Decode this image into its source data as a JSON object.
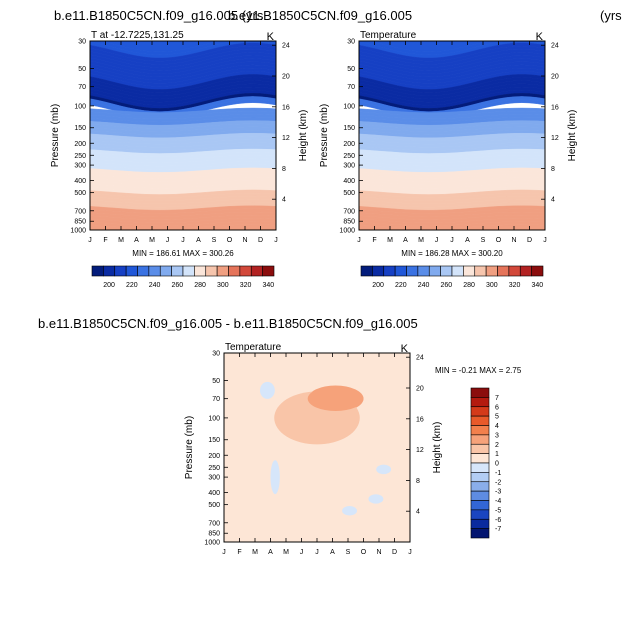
{
  "header": {
    "case_a": "b.e11.B1850C5CN.f09_g16.005 (yrs",
    "case_b": "b.e11.B1850C5CN.f09_g16.005",
    "yrs_b": "(yrs"
  },
  "diff_title": "b.e11.B1850C5CN.f09_g16.005 - b.e11.B1850C5CN.f09_g16.005",
  "chart_data": [
    {
      "type": "heatmap",
      "id": "panel1",
      "title_left": "T at -12.7225,131.25",
      "title_right": "K",
      "ylabel": "Pressure (mb)",
      "ylabel_right": "Height (km)",
      "x_ticks": [
        "J",
        "F",
        "M",
        "A",
        "M",
        "J",
        "J",
        "A",
        "S",
        "O",
        "N",
        "D",
        "J"
      ],
      "p_ticks": [
        30,
        50,
        70,
        100,
        150,
        200,
        250,
        300,
        400,
        500,
        700,
        850,
        1000
      ],
      "h_ticks": [
        4,
        8,
        12,
        16,
        20,
        24
      ],
      "contour_levels": [
        195,
        200,
        205,
        210,
        215,
        220,
        225,
        230,
        235,
        240,
        245,
        250,
        255,
        260,
        265,
        270,
        275,
        280,
        285,
        290,
        295,
        300
      ],
      "stats": "MIN = 186.61 MAX = 300.26",
      "colorbar_labels": [
        "200",
        "220",
        "240",
        "260",
        "280",
        "300",
        "320",
        "340"
      ],
      "colorbar_colors": [
        "#031c7b",
        "#0a2ba3",
        "#1640c4",
        "#2057d8",
        "#3a72e2",
        "#5a8de8",
        "#80aaee",
        "#a9c7f4",
        "#d3e4fa",
        "#fbe6da",
        "#f6c5ad",
        "#f09f81",
        "#e5745a",
        "#d2483a",
        "#b22222",
        "#8b0d0d"
      ]
    },
    {
      "type": "heatmap",
      "id": "panel2",
      "title_left": "Temperature",
      "title_right": "K",
      "ylabel": "Pressure (mb)",
      "ylabel_right": "Height (km)",
      "x_ticks": [
        "J",
        "F",
        "M",
        "A",
        "M",
        "J",
        "J",
        "A",
        "S",
        "O",
        "N",
        "D",
        "J"
      ],
      "p_ticks": [
        30,
        50,
        70,
        100,
        150,
        200,
        250,
        300,
        400,
        500,
        700,
        850,
        1000
      ],
      "h_ticks": [
        4,
        8,
        12,
        16,
        20,
        24
      ],
      "contour_levels": [
        195,
        200,
        205,
        210,
        215,
        220,
        225,
        230,
        235,
        240,
        245,
        250,
        255,
        260,
        265,
        270,
        275,
        280,
        285,
        290,
        295,
        300
      ],
      "stats": "MIN = 186.28 MAX = 300.20",
      "colorbar_labels": [
        "200",
        "220",
        "240",
        "260",
        "280",
        "300",
        "320",
        "340"
      ],
      "colorbar_colors": [
        "#031c7b",
        "#0a2ba3",
        "#1640c4",
        "#2057d8",
        "#3a72e2",
        "#5a8de8",
        "#80aaee",
        "#a9c7f4",
        "#d3e4fa",
        "#fbe6da",
        "#f6c5ad",
        "#f09f81",
        "#e5745a",
        "#d2483a",
        "#b22222",
        "#8b0d0d"
      ]
    },
    {
      "type": "heatmap",
      "id": "diff",
      "title_left": "Temperature",
      "title_right": "K",
      "ylabel": "Pressure (mb)",
      "ylabel_right": "Height (km)",
      "x_ticks": [
        "J",
        "F",
        "M",
        "A",
        "M",
        "J",
        "J",
        "A",
        "S",
        "O",
        "N",
        "D",
        "J"
      ],
      "p_ticks": [
        30,
        50,
        70,
        100,
        150,
        200,
        250,
        300,
        400,
        500,
        700,
        850,
        1000
      ],
      "h_ticks": [
        4,
        8,
        12,
        16,
        20,
        24
      ],
      "stats": "MIN =  -0.21 MAX =   2.75",
      "colorbar_labels": [
        "7",
        "6",
        "5",
        "4",
        "3",
        "2",
        "1",
        "0",
        "-1",
        "-2",
        "-3",
        "-4",
        "-5",
        "-6",
        "-7"
      ],
      "colorbar_colors": [
        "#8b0d0d",
        "#b41a0f",
        "#d43a1a",
        "#e85a2a",
        "#f2804c",
        "#f6a27a",
        "#f9c5a8",
        "#fde6d6",
        "#d6e6fa",
        "#b2cdf3",
        "#8aaeea",
        "#5e8ce2",
        "#3266d6",
        "#1a45c0",
        "#0a2a9e",
        "#041670"
      ],
      "features": [
        {
          "kind": "warm",
          "label": "1-2 K",
          "month": 7.2,
          "p": 70
        },
        {
          "kind": "slight_warm",
          "label": "0-1 K",
          "month": 6.0,
          "p": 100
        },
        {
          "kind": "cool",
          "label": "-1-0 K",
          "month": 2.8,
          "p": 60
        },
        {
          "kind": "cool",
          "label": "-1-0 K",
          "month": 3.3,
          "p": 300
        },
        {
          "kind": "cool",
          "label": "-1-0 K",
          "month": 8.1,
          "p": 560
        },
        {
          "kind": "cool",
          "label": "-1-0 K",
          "month": 9.8,
          "p": 450
        },
        {
          "kind": "cool",
          "label": "-1-0 K",
          "month": 10.3,
          "p": 260
        }
      ]
    }
  ]
}
